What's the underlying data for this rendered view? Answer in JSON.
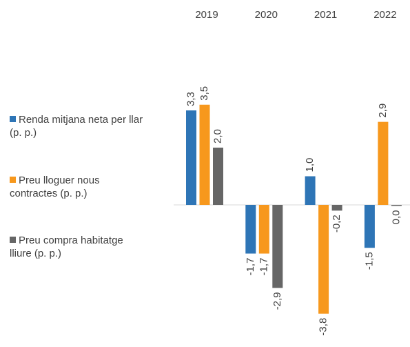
{
  "chart_data": {
    "type": "bar",
    "categories": [
      "2019",
      "2020",
      "2021",
      "2022"
    ],
    "series": [
      {
        "name": "Renda mitjana neta per llar (p. p.)",
        "color": "#2e75b6",
        "values": [
          3.3,
          -1.7,
          1.0,
          -1.5
        ],
        "value_labels": [
          "3,3",
          "-1,7",
          "1,0",
          "-1,5"
        ]
      },
      {
        "name": "Preu lloguer nous contractes (p. p.)",
        "color": "#f7981d",
        "values": [
          3.5,
          -1.7,
          -3.8,
          2.9
        ],
        "value_labels": [
          "3,5",
          "-1,7",
          "-3,8",
          "2,9"
        ]
      },
      {
        "name": "Preu compra habitatge lliure (p. p.)",
        "color": "#666666",
        "values": [
          2.0,
          -2.9,
          -0.2,
          0.0
        ],
        "value_labels": [
          "2,0",
          "-2,9",
          "-0,2",
          "0,0"
        ]
      }
    ],
    "ylim": [
      -4,
      4
    ],
    "legend": "left"
  }
}
